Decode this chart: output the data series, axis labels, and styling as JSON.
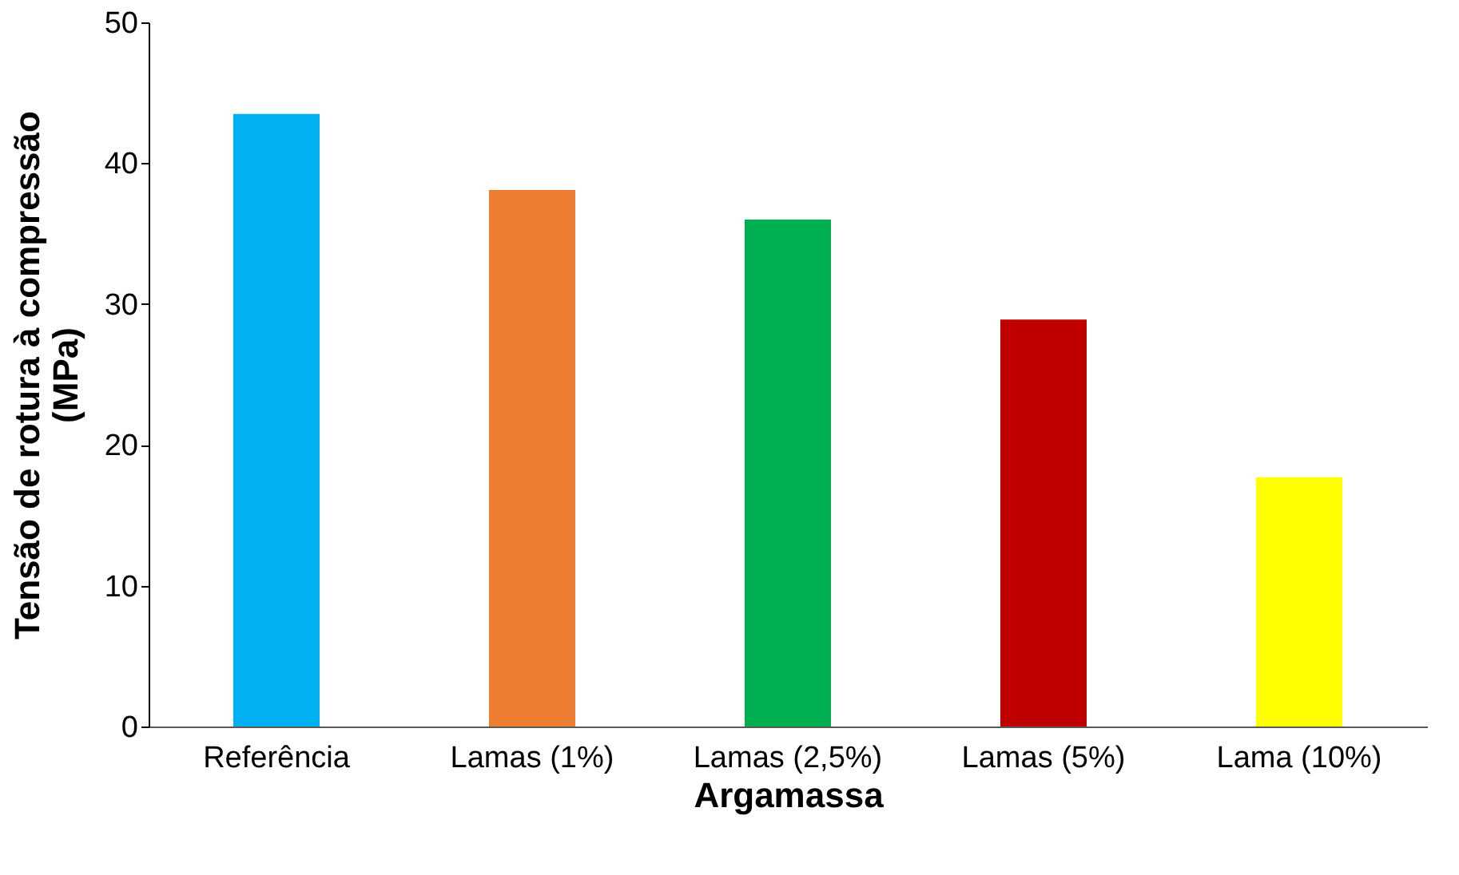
{
  "chart_data": {
    "type": "bar",
    "xlabel": "Argamassa",
    "ylabel": "Tensão de rotura à compressão (MPa)",
    "categories": [
      "Referência",
      "Lamas (1%)",
      "Lamas (2,5%)",
      "Lamas (5%)",
      "Lama (10%)"
    ],
    "values": [
      43.5,
      38.1,
      36.0,
      28.9,
      17.7
    ],
    "colors": [
      "#00b0f0",
      "#ed7d31",
      "#00b050",
      "#c00000",
      "#ffff00"
    ],
    "ylim": [
      0,
      50
    ],
    "yticks": [
      0,
      10,
      20,
      30,
      40,
      50
    ],
    "grid": false,
    "legend": false
  }
}
